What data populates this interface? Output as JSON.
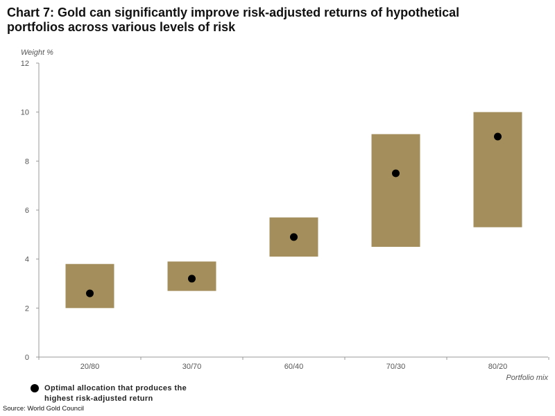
{
  "title": "Chart 7: Gold can significantly improve risk-adjusted returns of hypothetical portfolios across various levels of risk",
  "source": "Source: World Gold Council",
  "legend": {
    "label": "Optimal allocation that produces the highest risk-adjusted return"
  },
  "colors": {
    "range_box": "#a38e5c",
    "marker": "#000000",
    "axis": "#999999"
  },
  "chart_data": {
    "type": "range-dot",
    "title": "Chart 7: Gold can significantly improve risk-adjusted returns of hypothetical portfolios across various levels of risk",
    "xlabel": "Portfolio mix",
    "ylabel": "Weight %",
    "ylim": [
      0,
      12
    ],
    "yticks": [
      0,
      2,
      4,
      6,
      8,
      10,
      12
    ],
    "grid": false,
    "categories": [
      "20/80",
      "30/70",
      "60/40",
      "70/30",
      "80/20"
    ],
    "range_low": [
      2.0,
      2.7,
      4.1,
      4.5,
      5.3
    ],
    "range_high": [
      3.8,
      3.9,
      5.7,
      9.1,
      10.0
    ],
    "optimal": [
      2.6,
      3.2,
      4.9,
      7.5,
      9.0
    ],
    "legend_position": "bottom-left"
  }
}
